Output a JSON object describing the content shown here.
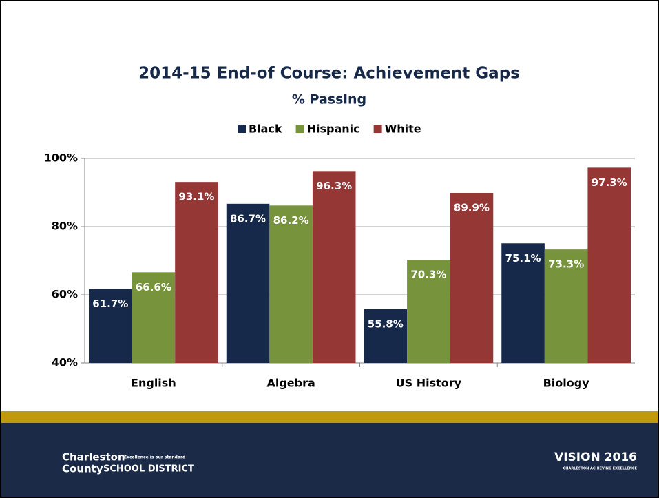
{
  "chart_data": {
    "type": "bar",
    "title": "2014-15 End-of Course: Achievement Gaps",
    "subtitle": "% Passing",
    "categories": [
      "English",
      "Algebra",
      "US History",
      "Biology"
    ],
    "series": [
      {
        "name": "Black",
        "color": "#17294a",
        "values": [
          61.7,
          86.7,
          55.8,
          75.1
        ],
        "value_labels": [
          "61.7%",
          "86.7%",
          "55.8%",
          "75.1%"
        ]
      },
      {
        "name": "Hispanic",
        "color": "#77933c",
        "values": [
          66.6,
          86.2,
          70.3,
          73.3
        ],
        "value_labels": [
          "66.6%",
          "86.2%",
          "70.3%",
          "73.3%"
        ]
      },
      {
        "name": "White",
        "color": "#953735",
        "values": [
          93.1,
          96.3,
          89.9,
          97.3
        ],
        "value_labels": [
          "93.1%",
          "96.3%",
          "89.9%",
          "97.3%"
        ]
      }
    ],
    "ylim": [
      40,
      100
    ],
    "yticks": [
      {
        "value": 40,
        "label": "40%"
      },
      {
        "value": 60,
        "label": "60%"
      },
      {
        "value": 80,
        "label": "80%"
      },
      {
        "value": 100,
        "label": "100%"
      }
    ],
    "grid": true,
    "legend": "top"
  },
  "footer": {
    "district_name": "Charleston",
    "district_line2": "County",
    "district_school": "SCHOOL DISTRICT",
    "motto": "Excellence is our standard",
    "vision": "VISION 2016",
    "vision_tagline": "CHARLESTON ACHIEVING EXCELLENCE"
  }
}
